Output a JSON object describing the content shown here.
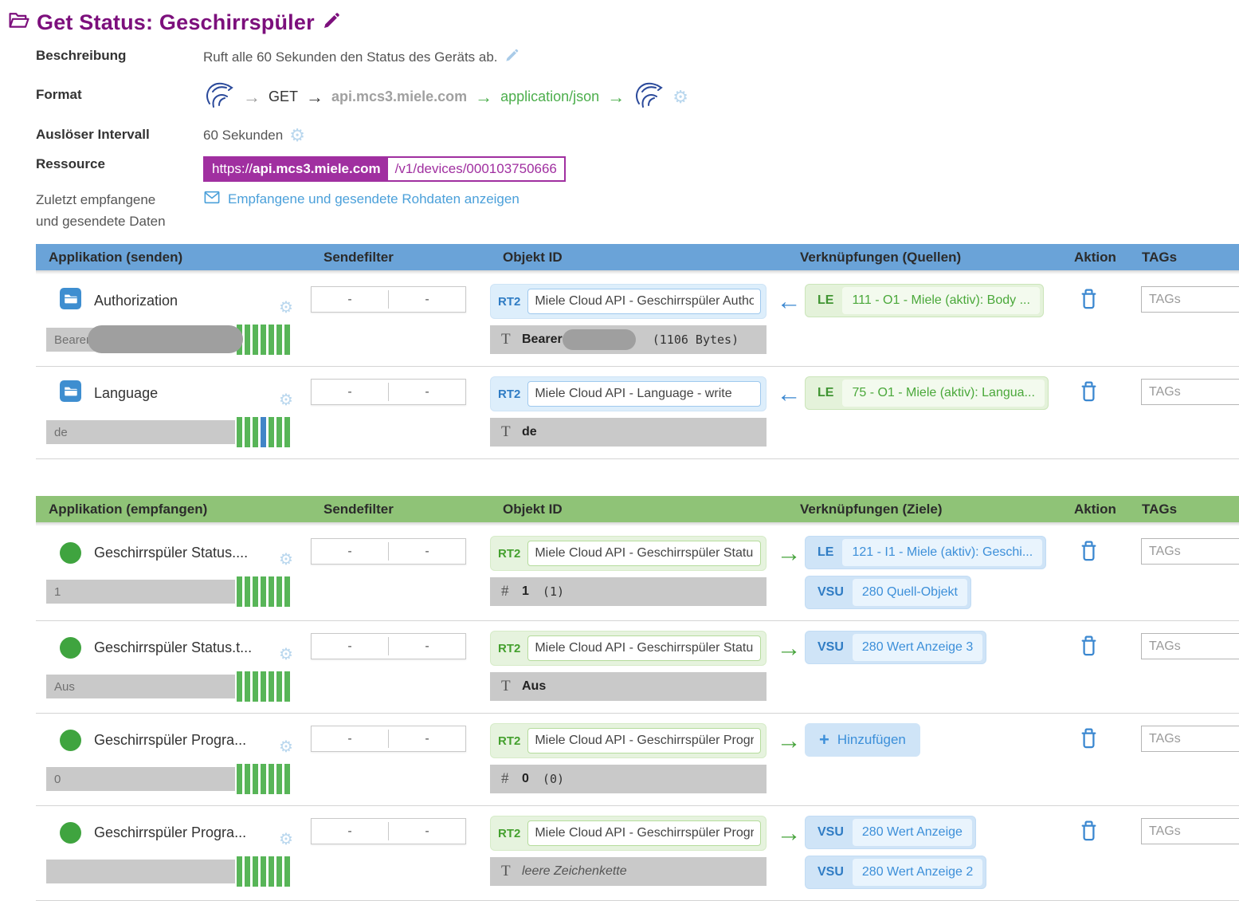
{
  "header": {
    "title": "Get Status: Geschirrspüler"
  },
  "details": {
    "description_label": "Beschreibung",
    "description_value": "Ruft alle 60 Sekunden den Status des Geräts ab.",
    "format_label": "Format",
    "format": {
      "method": "GET",
      "host": "api.mcs3.miele.com",
      "content_type": "application/json"
    },
    "interval_label": "Auslöser Intervall",
    "interval_value": "60 Sekunden",
    "resource_label": "Ressource",
    "resource_scheme": "https://",
    "resource_host": "api.mcs3.miele.com",
    "resource_path": "/v1/devices/000103750666",
    "lastdata_label": "Zuletzt empfangene und gesendete Daten",
    "rawdata_link": "Empfangene und gesendete Rohdaten anzeigen"
  },
  "send_table": {
    "direction": "out",
    "headers": {
      "app": "Applikation (senden)",
      "filter": "Sendefilter",
      "object": "Objekt ID",
      "links": "Verknüpfungen (Quellen)",
      "action": "Aktion",
      "tags": "TAGs"
    },
    "rows": [
      {
        "name": "Authorization",
        "icon": "folder",
        "value": "Bearer",
        "value_redacted": true,
        "stripes": [
          "green",
          "green",
          "green",
          "green",
          "green",
          "green",
          "green"
        ],
        "filter_left": "-",
        "filter_right": "-",
        "object_badge": "RT2",
        "object_name": "Miele Cloud API - Geschirrspüler Autho",
        "raw_type": "text",
        "raw_value": "Bearer",
        "raw_redacted": true,
        "raw_suffix": "(1106 Bytes)",
        "raw_italic": false,
        "links": [
          {
            "kind": "link",
            "badge": "LE",
            "style": "green",
            "text": "111 - O1 - Miele (aktiv): Body ..."
          }
        ],
        "tags_placeholder": "TAGs"
      },
      {
        "name": "Language",
        "icon": "folder",
        "value": "de",
        "value_redacted": false,
        "stripes": [
          "green",
          "green",
          "green",
          "blue",
          "green",
          "green",
          "green"
        ],
        "filter_left": "-",
        "filter_right": "-",
        "object_badge": "RT2",
        "object_name": "Miele Cloud API - Language - write",
        "raw_type": "text",
        "raw_value": "de",
        "raw_redacted": false,
        "raw_suffix": "",
        "raw_italic": false,
        "links": [
          {
            "kind": "link",
            "badge": "LE",
            "style": "green",
            "text": "75 - O1 - Miele (aktiv): Langua..."
          }
        ],
        "tags_placeholder": "TAGs"
      }
    ]
  },
  "receive_table": {
    "direction": "in",
    "headers": {
      "app": "Applikation (empfangen)",
      "filter": "Sendefilter",
      "object": "Objekt ID",
      "links": "Verknüpfungen (Ziele)",
      "action": "Aktion",
      "tags": "TAGs"
    },
    "rows": [
      {
        "name": "Geschirrspüler Status....",
        "icon": "circle",
        "value": "1",
        "value_redacted": false,
        "stripes": [
          "green",
          "green",
          "green",
          "green",
          "green",
          "green",
          "green"
        ],
        "filter_left": "-",
        "filter_right": "-",
        "object_badge": "RT2",
        "object_name": "Miele Cloud API - Geschirrspüler Status",
        "raw_type": "number",
        "raw_value": "1",
        "raw_redacted": false,
        "raw_suffix": "(1)",
        "raw_italic": false,
        "links": [
          {
            "kind": "link",
            "badge": "LE",
            "style": "blue",
            "text": "121 - I1 - Miele (aktiv): Geschi..."
          },
          {
            "kind": "link",
            "badge": "VSU",
            "style": "blue",
            "text": "280 Quell-Objekt"
          }
        ],
        "tags_placeholder": "TAGs"
      },
      {
        "name": "Geschirrspüler Status.t...",
        "icon": "circle",
        "value": "Aus",
        "value_redacted": false,
        "stripes": [
          "green",
          "green",
          "green",
          "green",
          "green",
          "green",
          "green"
        ],
        "filter_left": "-",
        "filter_right": "-",
        "object_badge": "RT2",
        "object_name": "Miele Cloud API - Geschirrspüler Status",
        "raw_type": "text",
        "raw_value": "Aus",
        "raw_redacted": false,
        "raw_suffix": "",
        "raw_italic": false,
        "links": [
          {
            "kind": "link",
            "badge": "VSU",
            "style": "blue",
            "text": "280 Wert Anzeige 3"
          }
        ],
        "tags_placeholder": "TAGs"
      },
      {
        "name": "Geschirrspüler Progra...",
        "icon": "circle",
        "value": "0",
        "value_redacted": false,
        "stripes": [
          "green",
          "green",
          "green",
          "green",
          "green",
          "green",
          "green"
        ],
        "filter_left": "-",
        "filter_right": "-",
        "object_badge": "RT2",
        "object_name": "Miele Cloud API - Geschirrspüler Progr",
        "raw_type": "number",
        "raw_value": "0",
        "raw_redacted": false,
        "raw_suffix": "(0)",
        "raw_italic": false,
        "links": [
          {
            "kind": "add",
            "text": "Hinzufügen"
          }
        ],
        "tags_placeholder": "TAGs"
      },
      {
        "name": "Geschirrspüler Progra...",
        "icon": "circle",
        "value": "",
        "value_redacted": false,
        "stripes": [
          "green",
          "green",
          "green",
          "green",
          "green",
          "green",
          "green"
        ],
        "filter_left": "-",
        "filter_right": "-",
        "object_badge": "RT2",
        "object_name": "Miele Cloud API - Geschirrspüler Progr",
        "raw_type": "text",
        "raw_value": "leere Zeichenkette",
        "raw_redacted": false,
        "raw_suffix": "",
        "raw_italic": true,
        "links": [
          {
            "kind": "link",
            "badge": "VSU",
            "style": "blue",
            "text": "280 Wert Anzeige"
          },
          {
            "kind": "link",
            "badge": "VSU",
            "style": "blue",
            "text": "280 Wert Anzeige 2"
          }
        ],
        "tags_placeholder": "TAGs"
      }
    ]
  }
}
